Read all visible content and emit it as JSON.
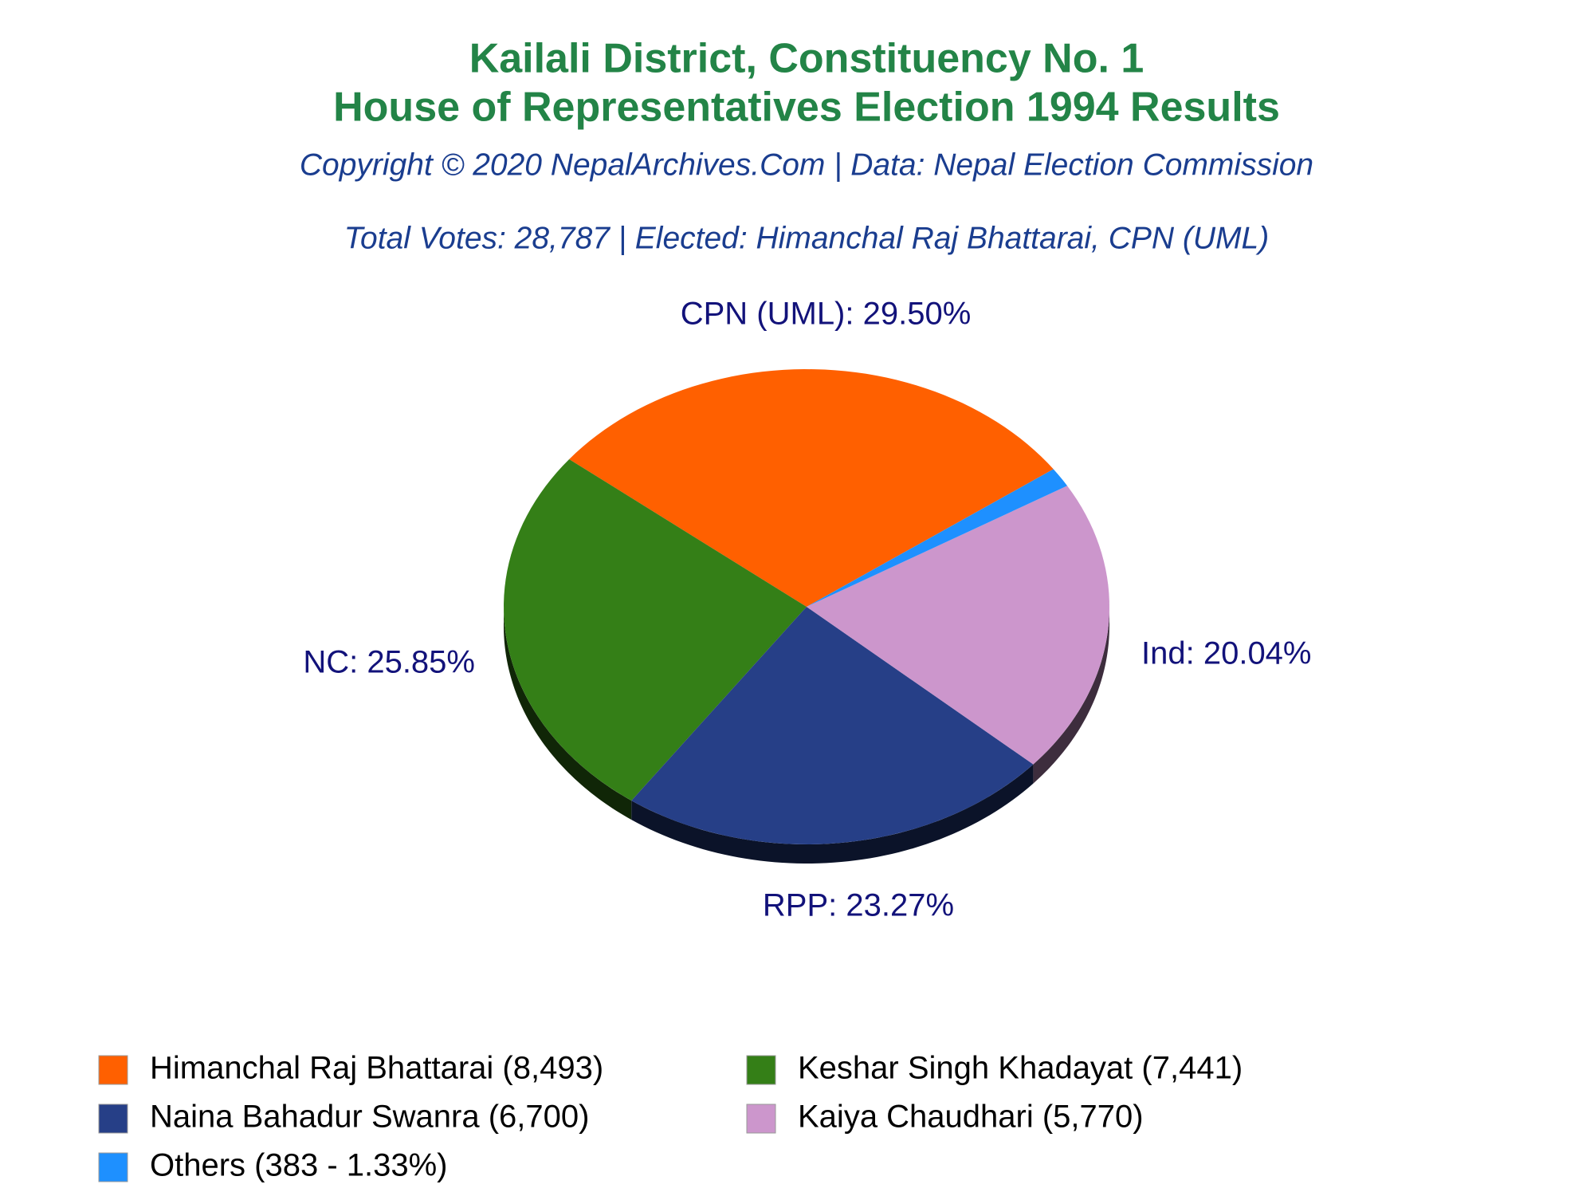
{
  "chart_data": {
    "type": "pie",
    "title": "Kailali District, Constituency No. 1",
    "subtitle": "House of Representatives Election 1994 Results",
    "source": "Copyright © 2020 NepalArchives.Com | Data: Nepal Election Commission",
    "annotation": "Total Votes: 28,787 | Elected: Himanchal Raj Bhattarai, CPN (UML)",
    "categories": [
      "Himanchal Raj Bhattarai (8,493)",
      "Keshar Singh Khadayat (7,441)",
      "Naina Bahadur Swanra (6,700)",
      "Kaiya Chaudhari (5,770)",
      "Others (383 - 1.33%)"
    ],
    "values": [
      29.5,
      25.85,
      23.27,
      20.04,
      1.33
    ],
    "value_labels": [
      "CPN (UML): 29.50%",
      "NC: 25.85%",
      "RPP: 23.27%",
      "Ind: 20.04%",
      null
    ],
    "colors": [
      "#ff6000",
      "#347f17",
      "#263f87",
      "#cc96cc",
      "#1e90ff"
    ]
  }
}
